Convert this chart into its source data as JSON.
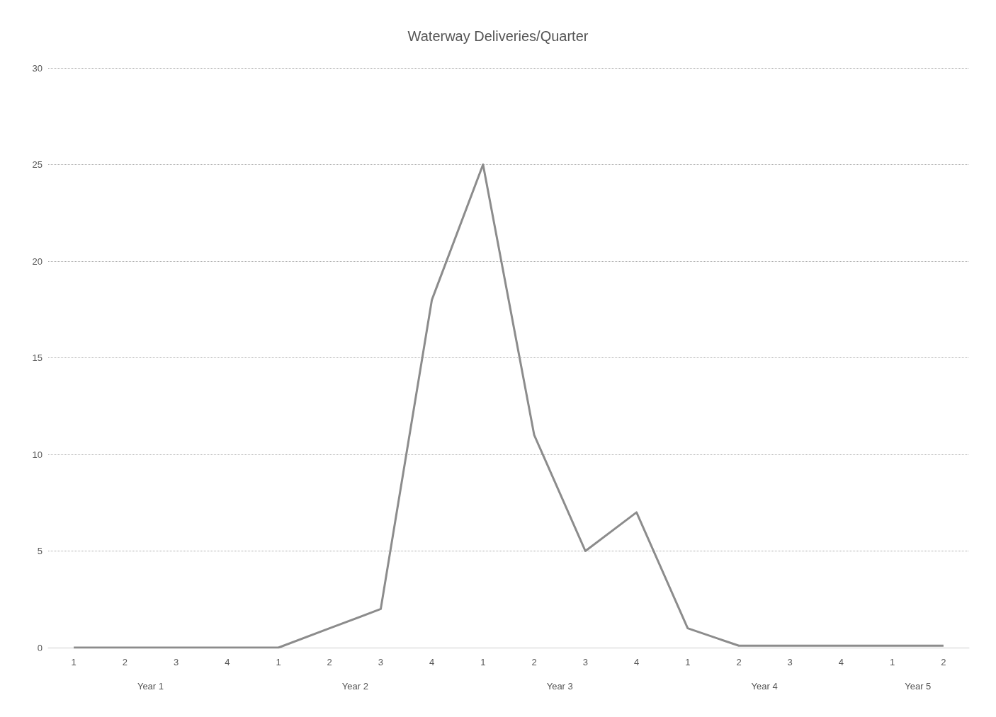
{
  "chart_data": {
    "type": "line",
    "title": "Waterway Deliveries/Quarter",
    "categories": [
      "1",
      "2",
      "3",
      "4",
      "1",
      "2",
      "3",
      "4",
      "1",
      "2",
      "3",
      "4",
      "1",
      "2",
      "3",
      "4",
      "1",
      "2"
    ],
    "values": [
      0,
      0,
      0,
      0,
      0,
      1,
      2,
      18,
      25,
      11,
      5,
      7,
      1,
      0.1,
      0.1,
      0.1,
      0.1,
      0.1
    ],
    "color": "#8c8c8c",
    "ylim": [
      0,
      30
    ],
    "yticks": [
      0,
      5,
      10,
      15,
      20,
      25,
      30
    ],
    "grid": "y",
    "marker": "none",
    "line_style": "solid",
    "annotations": [
      "Year 1",
      "Year 2",
      "Year 3",
      "Year 4",
      "Year 5"
    ]
  }
}
